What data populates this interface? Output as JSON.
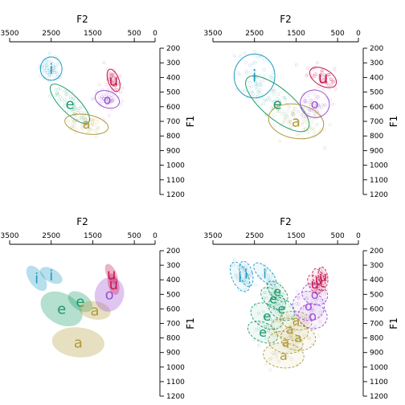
{
  "chart_data": {
    "type": "scatter",
    "layout": "2x2 small multiples",
    "x_axis": {
      "label": "F2",
      "range": [
        3500,
        0
      ],
      "ticks": [
        3500,
        2500,
        1500,
        500,
        0
      ],
      "position": "top",
      "reversed": true
    },
    "y_axis": {
      "label": "F1",
      "range": [
        200,
        1200
      ],
      "ticks": [
        200,
        300,
        400,
        500,
        600,
        700,
        800,
        900,
        1000,
        1100,
        1200
      ],
      "position": "right",
      "reversed": true
    },
    "colors": {
      "i": "#1f9ac3",
      "e": "#1a9b6b",
      "a": "#b09a3a",
      "o": "#9b4fd0",
      "u": "#c8144f"
    },
    "panels": [
      {
        "id": "top-left",
        "xlabel": "F2",
        "ylabel": "F1",
        "style": "points-with-ellipses",
        "vowels": [
          {
            "label": "i",
            "f2": 2500,
            "f1": 340,
            "label_size": 18,
            "ellipse": {
              "rx": 260,
              "ry": 80,
              "angle": 0
            }
          },
          {
            "label": "e",
            "f2": 2050,
            "f1": 580,
            "label_size": 18,
            "ellipse": {
              "rx": 220,
              "ry": 180,
              "angle": -45
            }
          },
          {
            "label": "a",
            "f2": 1650,
            "f1": 720,
            "label_size": 16,
            "ellipse": {
              "rx": 230,
              "ry": 150,
              "angle": -80
            }
          },
          {
            "label": "o",
            "f2": 1150,
            "f1": 550,
            "label_size": 16,
            "ellipse": {
              "rx": 200,
              "ry": 85,
              "angle": -70
            }
          },
          {
            "label": "u",
            "f2": 1000,
            "f1": 420,
            "label_size": 18,
            "ellipse": {
              "rx": 130,
              "ry": 80,
              "angle": -20
            }
          }
        ]
      },
      {
        "id": "top-right",
        "xlabel": "F2",
        "ylabel": "F1",
        "style": "points-with-ellipses",
        "vowels": [
          {
            "label": "i",
            "f2": 2500,
            "f1": 390,
            "label_size": 20,
            "ellipse": {
              "rx": 490,
              "ry": 150,
              "angle": 0
            }
          },
          {
            "label": "e",
            "f2": 1950,
            "f1": 580,
            "label_size": 18,
            "ellipse": {
              "rx": 360,
              "ry": 270,
              "angle": -50
            }
          },
          {
            "label": "a",
            "f2": 1500,
            "f1": 700,
            "label_size": 18,
            "ellipse": {
              "rx": 410,
              "ry": 190,
              "angle": -80
            }
          },
          {
            "label": "o",
            "f2": 1050,
            "f1": 580,
            "label_size": 16,
            "ellipse": {
              "rx": 330,
              "ry": 100,
              "angle": -75
            }
          },
          {
            "label": "u",
            "f2": 850,
            "f1": 400,
            "label_size": 20,
            "ellipse": {
              "rx": 200,
              "ry": 100,
              "angle": -60
            }
          }
        ]
      },
      {
        "id": "bottom-left",
        "xlabel": "F2",
        "ylabel": "F1",
        "style": "filled-ellipses",
        "vowels": [
          {
            "label": "i",
            "f2": 2850,
            "f1": 390,
            "label_size": 18,
            "ellipse": {
              "rx": 180,
              "ry": 100,
              "angle": -35
            }
          },
          {
            "label": "i",
            "f2": 2500,
            "f1": 370,
            "label_size": 18,
            "ellipse": {
              "rx": 160,
              "ry": 85,
              "angle": -60
            }
          },
          {
            "label": "e",
            "f2": 2250,
            "f1": 600,
            "label_size": 18,
            "ellipse": {
              "rx": 370,
              "ry": 155,
              "angle": -60
            }
          },
          {
            "label": "e",
            "f2": 1800,
            "f1": 550,
            "label_size": 18,
            "ellipse": {
              "rx": 200,
              "ry": 95,
              "angle": -55
            }
          },
          {
            "label": "a",
            "f2": 1850,
            "f1": 830,
            "label_size": 18,
            "ellipse": {
              "rx": 360,
              "ry": 180,
              "angle": -85
            }
          },
          {
            "label": "a",
            "f2": 1450,
            "f1": 610,
            "label_size": 18,
            "ellipse": {
              "rx": 220,
              "ry": 110,
              "angle": -80
            }
          },
          {
            "label": "o",
            "f2": 1100,
            "f1": 500,
            "label_size": 18,
            "ellipse": {
              "rx": 420,
              "ry": 100,
              "angle": -75
            }
          },
          {
            "label": "u",
            "f2": 1000,
            "f1": 430,
            "label_size": 18,
            "ellipse": {
              "rx": 130,
              "ry": 75,
              "angle": -15
            }
          },
          {
            "label": "u",
            "f2": 1050,
            "f1": 360,
            "label_size": 18,
            "ellipse": {
              "rx": 120,
              "ry": 75,
              "angle": -25
            }
          }
        ]
      },
      {
        "id": "bottom-right",
        "xlabel": "F2",
        "ylabel": "F1",
        "style": "speaker-ellipses",
        "vowels": [
          {
            "label": "i",
            "f2": 2850,
            "f1": 380,
            "label_size": 18,
            "ellipse": {
              "rx": 190,
              "ry": 110,
              "angle": -25
            }
          },
          {
            "label": "i",
            "f2": 2700,
            "f1": 360,
            "label_size": 16,
            "ellipse": {
              "rx": 150,
              "ry": 90,
              "angle": -15
            }
          },
          {
            "label": "i",
            "f2": 2250,
            "f1": 360,
            "label_size": 16,
            "ellipse": {
              "rx": 150,
              "ry": 100,
              "angle": -45
            }
          },
          {
            "label": "e",
            "f2": 2200,
            "f1": 650,
            "label_size": 16,
            "ellipse": {
              "rx": 280,
              "ry": 120,
              "angle": -60
            }
          },
          {
            "label": "e",
            "f2": 2050,
            "f1": 530,
            "label_size": 16,
            "ellipse": {
              "rx": 200,
              "ry": 100,
              "angle": -50
            }
          },
          {
            "label": "e",
            "f2": 1950,
            "f1": 480,
            "label_size": 16,
            "ellipse": {
              "rx": 160,
              "ry": 90,
              "angle": -45
            }
          },
          {
            "label": "e",
            "f2": 1850,
            "f1": 600,
            "label_size": 16,
            "ellipse": {
              "rx": 240,
              "ry": 100,
              "angle": -55
            }
          },
          {
            "label": "e",
            "f2": 2300,
            "f1": 760,
            "label_size": 16,
            "ellipse": {
              "rx": 230,
              "ry": 110,
              "angle": -65
            }
          },
          {
            "label": "a",
            "f2": 1800,
            "f1": 920,
            "label_size": 16,
            "ellipse": {
              "rx": 300,
              "ry": 140,
              "angle": -85
            }
          },
          {
            "label": "a",
            "f2": 1650,
            "f1": 740,
            "label_size": 16,
            "ellipse": {
              "rx": 250,
              "ry": 130,
              "angle": -75
            }
          },
          {
            "label": "a",
            "f2": 1500,
            "f1": 680,
            "label_size": 16,
            "ellipse": {
              "rx": 220,
              "ry": 110,
              "angle": -80
            }
          },
          {
            "label": "a",
            "f2": 1450,
            "f1": 800,
            "label_size": 16,
            "ellipse": {
              "rx": 300,
              "ry": 120,
              "angle": -85
            }
          },
          {
            "label": "a",
            "f2": 1750,
            "f1": 830,
            "label_size": 16,
            "ellipse": {
              "rx": 260,
              "ry": 120,
              "angle": -80
            }
          },
          {
            "label": "o",
            "f2": 1200,
            "f1": 580,
            "label_size": 16,
            "ellipse": {
              "rx": 350,
              "ry": 110,
              "angle": -75
            }
          },
          {
            "label": "o",
            "f2": 1050,
            "f1": 500,
            "label_size": 16,
            "ellipse": {
              "rx": 250,
              "ry": 90,
              "angle": -70
            }
          },
          {
            "label": "o",
            "f2": 1100,
            "f1": 650,
            "label_size": 16,
            "ellipse": {
              "rx": 300,
              "ry": 100,
              "angle": -80
            }
          },
          {
            "label": "u",
            "f2": 950,
            "f1": 400,
            "label_size": 16,
            "ellipse": {
              "rx": 130,
              "ry": 80,
              "angle": -20
            }
          },
          {
            "label": "u",
            "f2": 850,
            "f1": 380,
            "label_size": 16,
            "ellipse": {
              "rx": 110,
              "ry": 70,
              "angle": -10
            }
          },
          {
            "label": "u",
            "f2": 1050,
            "f1": 430,
            "label_size": 16,
            "ellipse": {
              "rx": 140,
              "ry": 70,
              "angle": -30
            }
          }
        ]
      }
    ]
  }
}
